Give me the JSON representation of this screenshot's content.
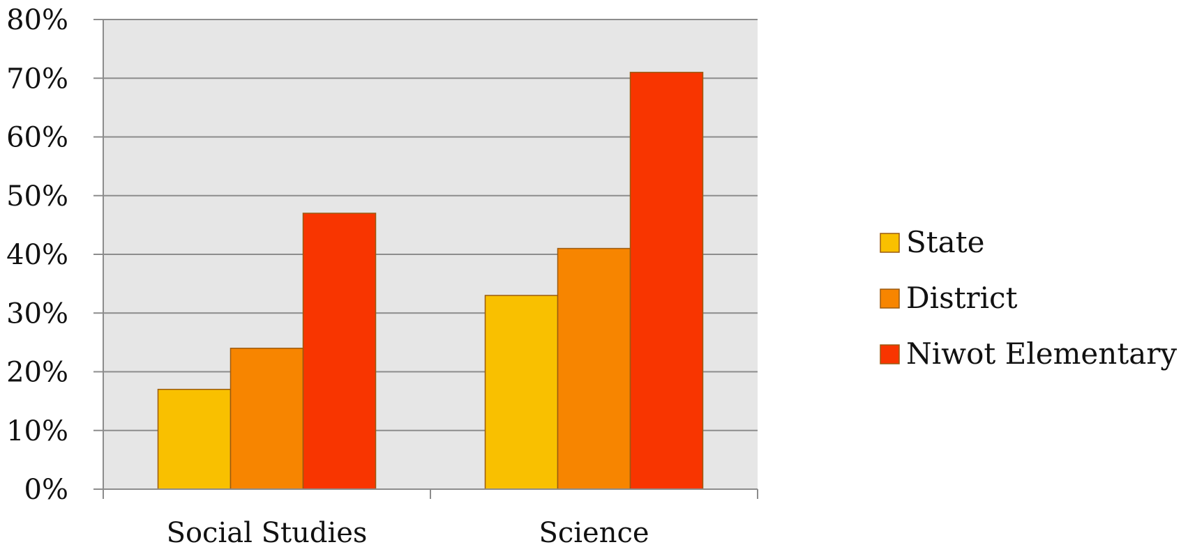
{
  "chart_data": {
    "type": "bar",
    "categories": [
      "Social Studies",
      "Science"
    ],
    "series": [
      {
        "name": "State",
        "values": [
          17,
          33
        ],
        "color": "#F9C000"
      },
      {
        "name": "District",
        "values": [
          24,
          41
        ],
        "color": "#F78500"
      },
      {
        "name": "Niwot Elementary",
        "values": [
          47,
          71
        ],
        "color": "#F83500"
      }
    ],
    "ylim": [
      0,
      80
    ],
    "yticks": [
      0,
      10,
      20,
      30,
      40,
      50,
      60,
      70,
      80
    ],
    "ytick_labels": [
      "0%",
      "10%",
      "20%",
      "30%",
      "40%",
      "50%",
      "60%",
      "70%",
      "80%"
    ],
    "title": "",
    "xlabel": "",
    "ylabel": "",
    "grid": true,
    "legend_position": "right"
  }
}
